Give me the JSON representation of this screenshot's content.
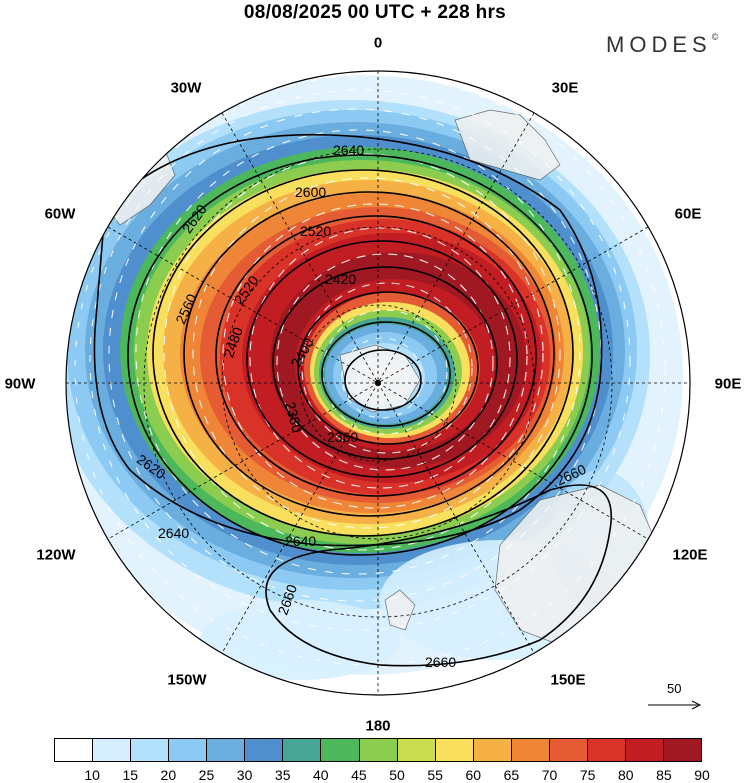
{
  "title": "08/08/2025  00 UTC  + 228 hrs",
  "brand": {
    "name": "MODES",
    "mark": "©"
  },
  "longitude_labels": [
    "0",
    "30E",
    "60E",
    "90E",
    "120E",
    "150E",
    "180",
    "150W",
    "120W",
    "90W",
    "60W",
    "30W"
  ],
  "vector_scale": {
    "label": "50"
  },
  "contour_labels": [
    "2640",
    "2600",
    "2620",
    "2520",
    "2420",
    "2560",
    "2520",
    "2480",
    "2400",
    "2360",
    "2620",
    "2640",
    "2660",
    "2380",
    "2660",
    "2660",
    "2640"
  ],
  "colorbar": {
    "colors": [
      "#ffffff",
      "#d6efff",
      "#b3e0fb",
      "#8ccaf3",
      "#6aaedf",
      "#4f8fcd",
      "#47a596",
      "#4cb85b",
      "#8ccd50",
      "#c9dd4f",
      "#f8df5d",
      "#f5b046",
      "#ef8536",
      "#e55b33",
      "#d83229",
      "#c11d23",
      "#a01821"
    ],
    "ticks": [
      "10",
      "15",
      "20",
      "25",
      "30",
      "35",
      "40",
      "45",
      "50",
      "55",
      "60",
      "65",
      "70",
      "75",
      "80",
      "85",
      "90"
    ]
  }
}
